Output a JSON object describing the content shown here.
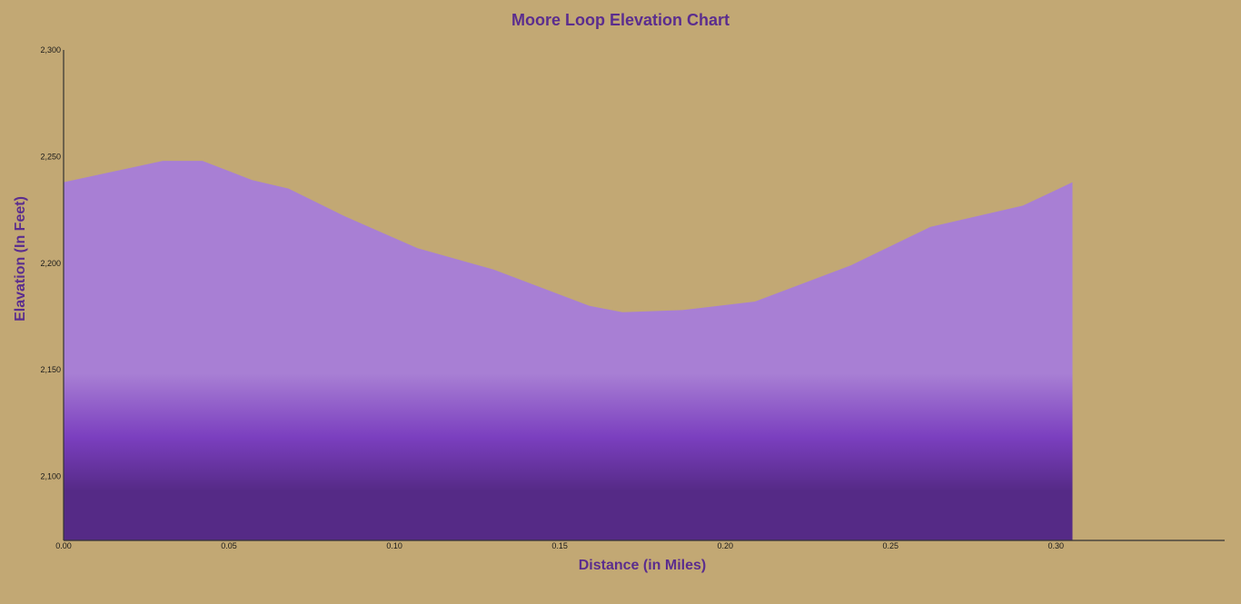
{
  "chart_data": {
    "type": "area",
    "title": "Moore Loop Elevation Chart",
    "xlabel": "Distance (in Miles)",
    "ylabel": "Elavation (In Feet)",
    "xlim": [
      0,
      0.351
    ],
    "ylim": [
      2070,
      2300
    ],
    "x_ticks": [
      0.0,
      0.05,
      0.1,
      0.15,
      0.2,
      0.25,
      0.3
    ],
    "x_tick_labels": [
      "0.00",
      "0.05",
      "0.10",
      "0.15",
      "0.20",
      "0.25",
      "0.30"
    ],
    "y_ticks": [
      2100,
      2150,
      2200,
      2250,
      2300
    ],
    "y_tick_labels": [
      "2,100",
      "2,150",
      "2,200",
      "2,250",
      "2,300"
    ],
    "grid": false,
    "series": [
      {
        "x": [
          0.0,
          0.03,
          0.042,
          0.057,
          0.068,
          0.085,
          0.107,
          0.13,
          0.159,
          0.169,
          0.187,
          0.209,
          0.238,
          0.262,
          0.29,
          0.305
        ],
        "y": [
          2238,
          2248,
          2248,
          2239,
          2235,
          2222,
          2207,
          2197,
          2180,
          2177,
          2178,
          2182,
          2199,
          2217,
          2227,
          2238
        ]
      }
    ],
    "colors": {
      "background": "#c2a874",
      "fill_top": "#a87fd4",
      "fill_mid": "#7b3fbf",
      "fill_bottom": "#552a86",
      "text_accent": "#5b2d8e"
    }
  }
}
